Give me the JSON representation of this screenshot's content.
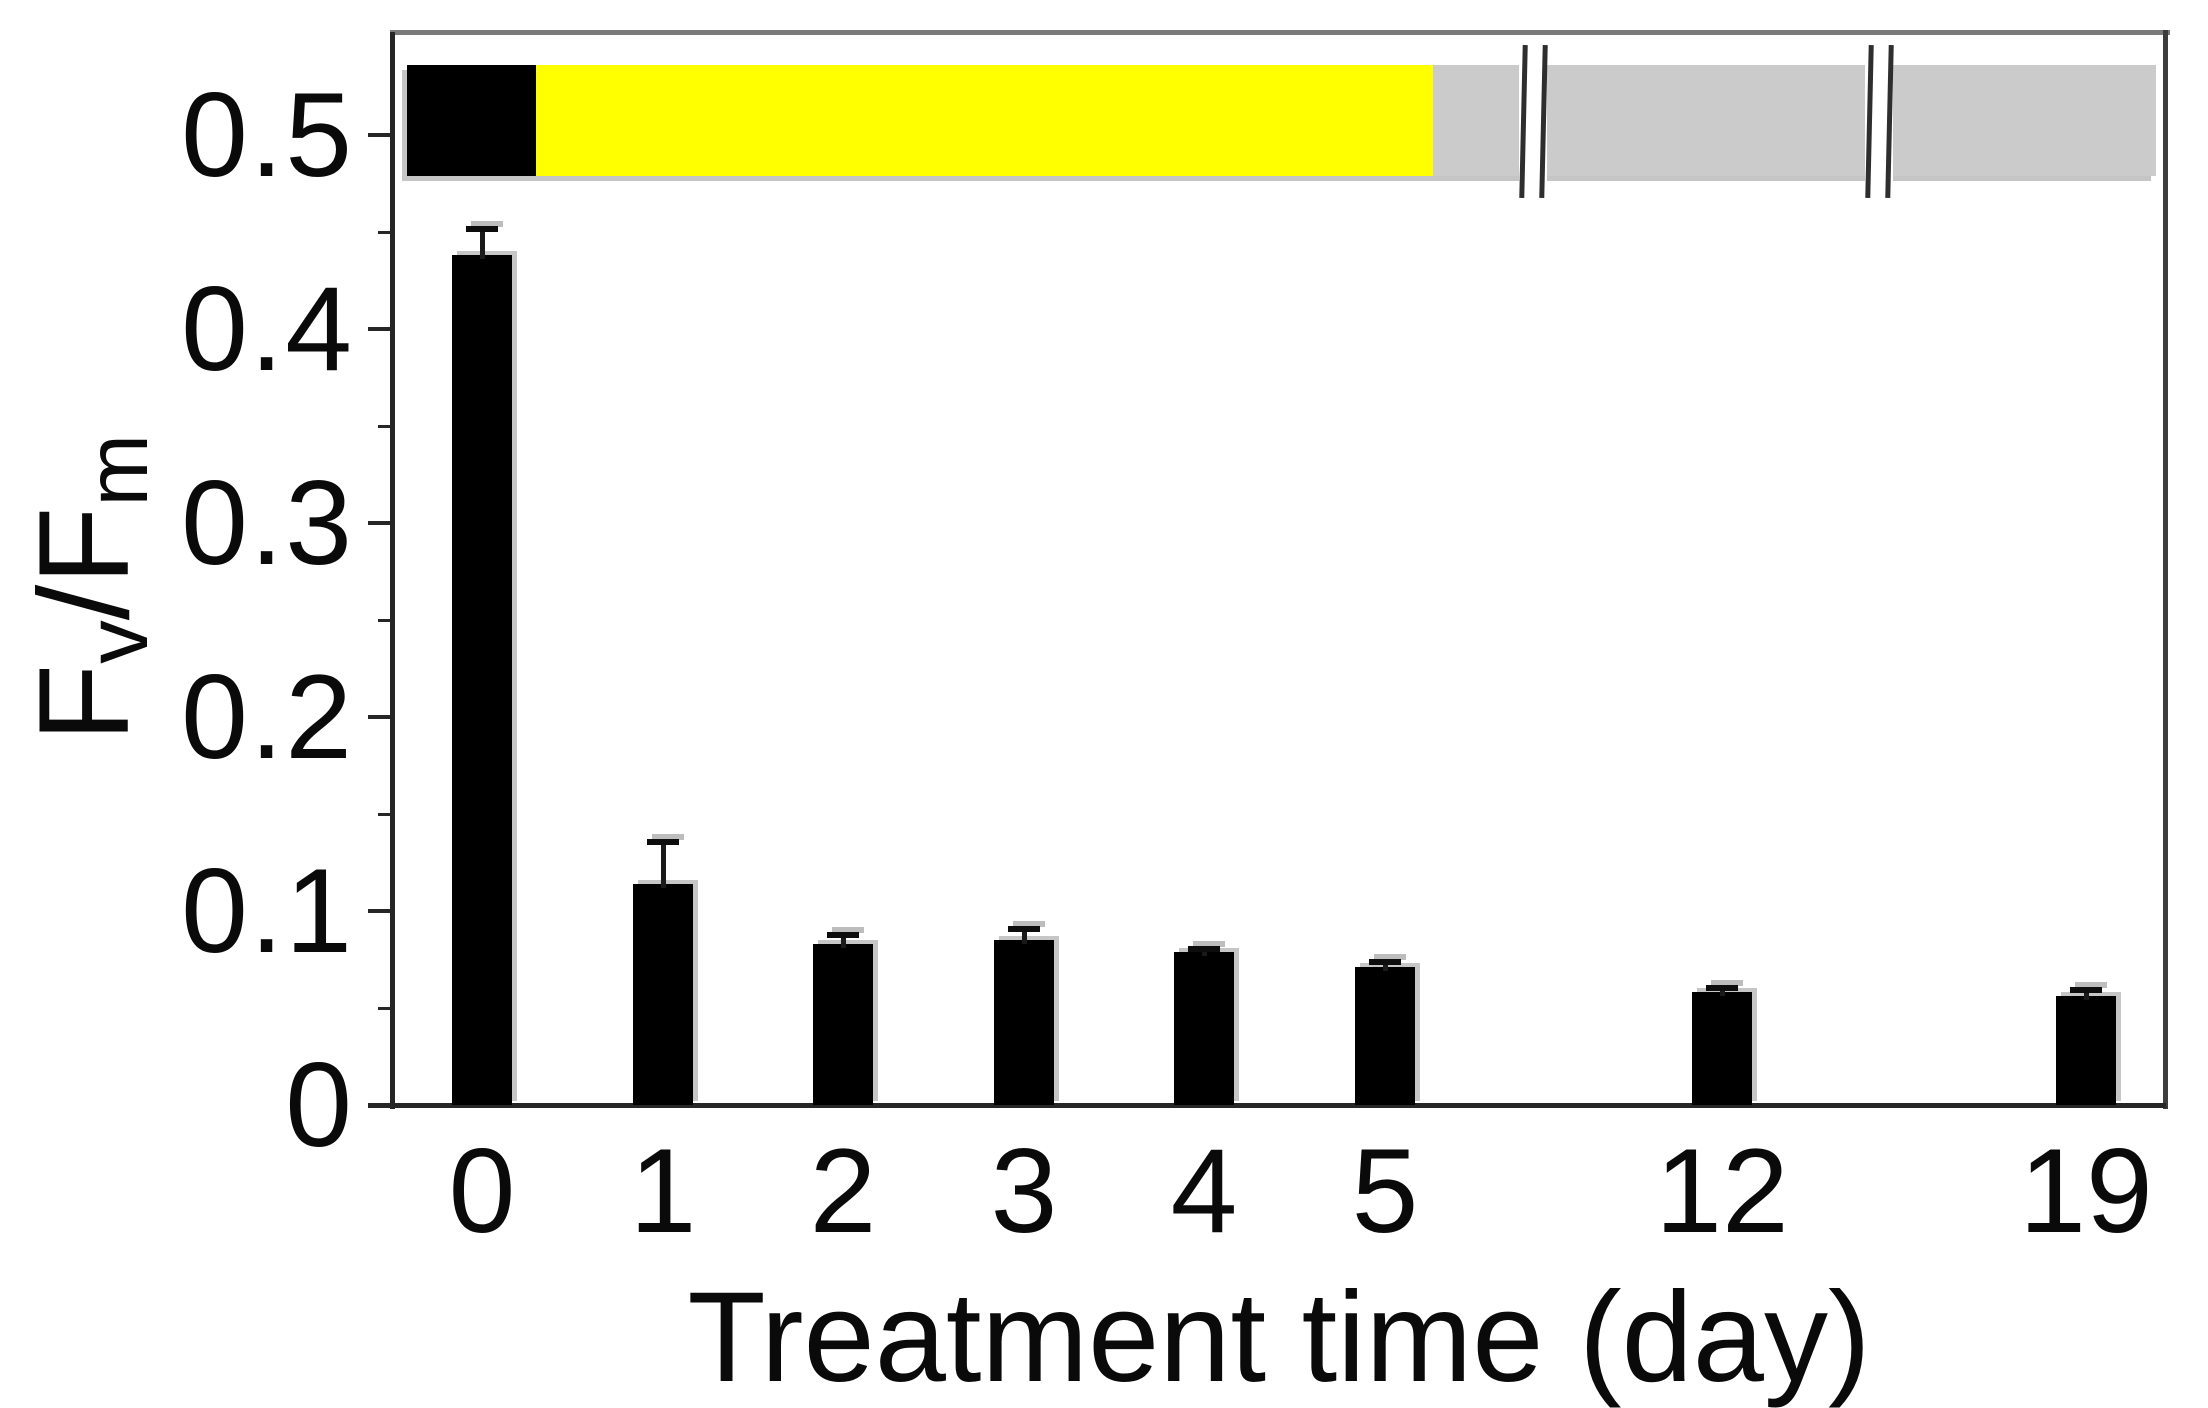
{
  "figure": {
    "description": "Bar chart of maximum quantum yield of PSII (Fv/Fm) versus treatment time in days, with broken x-axis and treatment phase band",
    "background": "#ffffff"
  },
  "chart_data": {
    "type": "bar",
    "title": "",
    "xlabel": "Treatment time (day)",
    "ylabel": "Fv/Fm",
    "ylabel_parts": {
      "base1": "F",
      "sub1": "v",
      "base2": "/F",
      "sub2": "m"
    },
    "categories": [
      "0",
      "1",
      "2",
      "3",
      "4",
      "5",
      "12",
      "19"
    ],
    "values": [
      0.438,
      0.114,
      0.083,
      0.085,
      0.079,
      0.071,
      0.058,
      0.056
    ],
    "error_bars_plus": [
      0.014,
      0.022,
      0.005,
      0.006,
      0.002,
      0.003,
      0.003,
      0.004
    ],
    "bar_color": "#000000",
    "error_bar_color": "#1a1a1a",
    "ylim": [
      0,
      0.553
    ],
    "y_major_ticks": [
      {
        "value": 0,
        "label": "0"
      },
      {
        "value": 0.1,
        "label": "0.1"
      },
      {
        "value": 0.2,
        "label": "0.2"
      },
      {
        "value": 0.3,
        "label": "0.3"
      },
      {
        "value": 0.4,
        "label": "0.4"
      },
      {
        "value": 0.5,
        "label": "0.5"
      }
    ],
    "y_minor_tick_values": [
      0.05,
      0.15,
      0.25,
      0.35,
      0.45
    ],
    "x_axis_breaks_after_categories": [
      "5",
      "12"
    ],
    "grid": false,
    "legend": false,
    "top_band": {
      "description": "treatment phase band drawn near y = 0.48 - 0.54 inside plot",
      "value_span": [
        0.479,
        0.536
      ],
      "segments": [
        {
          "name": "dark-phase",
          "color": "#000000",
          "covers_categories": [
            "0"
          ]
        },
        {
          "name": "yellow-phase",
          "color": "#ffff00",
          "covers_categories": [
            "1",
            "2",
            "3",
            "4",
            "5"
          ]
        },
        {
          "name": "gray-phase",
          "color": "#cbcbcb",
          "covers_categories": [
            "12",
            "19"
          ]
        }
      ]
    },
    "frame_colors": {
      "top": "#7a7a7a",
      "right": "#3d3d3d",
      "axis": "#262626"
    }
  }
}
